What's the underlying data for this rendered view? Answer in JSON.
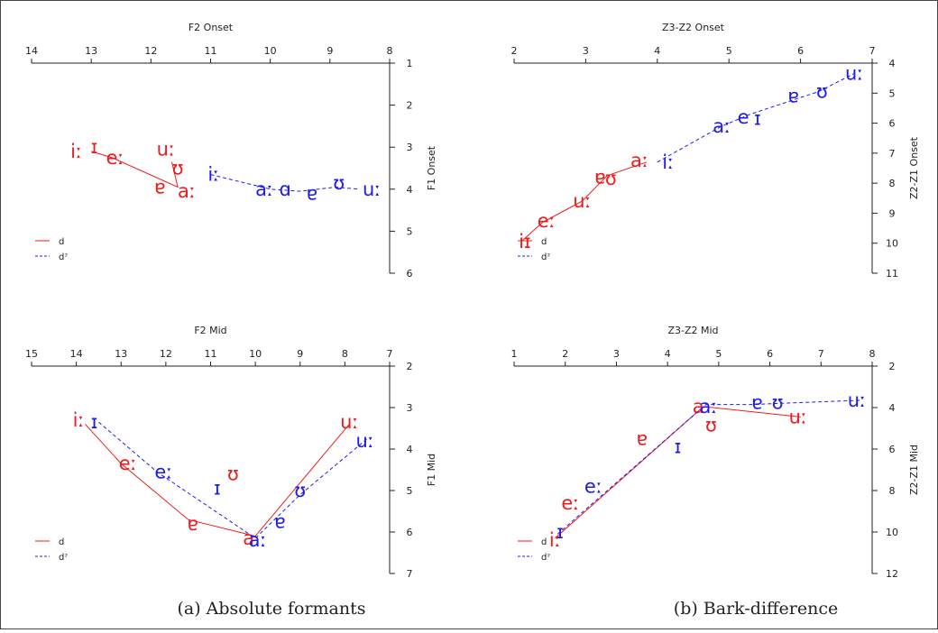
{
  "captions": [
    "(a) Absolute formants",
    "(b) Bark-difference"
  ],
  "colors": {
    "d": "#ee1c1c",
    "dq": "#1c1cee"
  },
  "legend": [
    {
      "name": "d",
      "dashed": false,
      "color": "#ee1c1c"
    },
    {
      "name": "dˀ",
      "dashed": true,
      "color": "#1c1cee"
    }
  ],
  "chart_data": [
    {
      "type": "line",
      "xlabel": "F2 Onset",
      "ylabel": "F1 Onset",
      "xlim": [
        14,
        8
      ],
      "ylim": [
        1,
        6
      ],
      "xticks": [
        14,
        13,
        12,
        11,
        10,
        9,
        8
      ],
      "yticks": [
        1,
        2,
        3,
        4,
        5,
        6
      ],
      "legend_position": "lower-left",
      "series": [
        {
          "name": "d",
          "color": "#ee1c1c",
          "dashed": false,
          "path": [
            [
              13.0,
              3.1
            ],
            [
              12.65,
              3.25
            ],
            [
              11.55,
              3.95
            ],
            [
              11.65,
              3.35
            ],
            [
              11.55,
              3.95
            ]
          ],
          "points": [
            {
              "label": "iː",
              "x": 13.25,
              "y": 3.1
            },
            {
              "label": "ɪ",
              "x": 12.95,
              "y": 3.0
            },
            {
              "label": "eː",
              "x": 12.6,
              "y": 3.25
            },
            {
              "label": "uː",
              "x": 11.75,
              "y": 3.05
            },
            {
              "label": "ʊ",
              "x": 11.55,
              "y": 3.5
            },
            {
              "label": "ɐ",
              "x": 11.85,
              "y": 3.95
            },
            {
              "label": "aː",
              "x": 11.4,
              "y": 4.05
            }
          ]
        },
        {
          "name": "dˀ",
          "color": "#1c1cee",
          "dashed": true,
          "path": [
            [
              11.0,
              3.65
            ],
            [
              10.0,
              4.0
            ],
            [
              9.5,
              4.05
            ],
            [
              8.9,
              3.95
            ],
            [
              8.5,
              4.0
            ]
          ],
          "points": [
            {
              "label": "iː",
              "x": 10.95,
              "y": 3.65
            },
            {
              "label": "aː",
              "x": 10.1,
              "y": 4.0
            },
            {
              "label": "ɑ",
              "x": 9.75,
              "y": 4.0
            },
            {
              "label": "ɐ",
              "x": 9.3,
              "y": 4.1
            },
            {
              "label": "ʊ",
              "x": 8.85,
              "y": 3.85
            },
            {
              "label": "uː",
              "x": 8.3,
              "y": 4.0
            }
          ]
        }
      ]
    },
    {
      "type": "line",
      "xlabel": "Z3-Z2 Onset",
      "ylabel": "Z2-Z1 Onset",
      "xlim": [
        2,
        7
      ],
      "ylim": [
        4,
        11
      ],
      "xticks": [
        2,
        3,
        4,
        5,
        6,
        7
      ],
      "yticks": [
        4,
        5,
        6,
        7,
        8,
        9,
        10,
        11
      ],
      "legend_position": "lower-left",
      "series": [
        {
          "name": "d",
          "color": "#ee1c1c",
          "dashed": false,
          "path": [
            [
              2.1,
              9.95
            ],
            [
              2.4,
              9.3
            ],
            [
              2.95,
              8.6
            ],
            [
              3.3,
              7.75
            ],
            [
              3.85,
              7.3
            ]
          ],
          "points": [
            {
              "label": "iɪ",
              "x": 2.15,
              "y": 9.95
            },
            {
              "label": "eː",
              "x": 2.45,
              "y": 9.25
            },
            {
              "label": "uː",
              "x": 2.95,
              "y": 8.6
            },
            {
              "label": "ɐ",
              "x": 3.2,
              "y": 7.8
            },
            {
              "label": "ʊ",
              "x": 3.35,
              "y": 7.85
            },
            {
              "label": "aː",
              "x": 3.75,
              "y": 7.25
            }
          ]
        },
        {
          "name": "dˀ",
          "color": "#1c1cee",
          "dashed": true,
          "path": [
            [
              4.0,
              7.3
            ],
            [
              4.9,
              6.1
            ],
            [
              5.3,
              5.7
            ],
            [
              6.25,
              4.95
            ],
            [
              6.75,
              4.35
            ]
          ],
          "points": [
            {
              "label": "iː",
              "x": 4.15,
              "y": 7.3
            },
            {
              "label": "aː",
              "x": 4.9,
              "y": 6.1
            },
            {
              "label": "e",
              "x": 5.2,
              "y": 5.8
            },
            {
              "label": "ɪ",
              "x": 5.4,
              "y": 5.85
            },
            {
              "label": "ɐ",
              "x": 5.9,
              "y": 5.1
            },
            {
              "label": "ʊ",
              "x": 6.3,
              "y": 4.95
            },
            {
              "label": "uː",
              "x": 6.75,
              "y": 4.35
            }
          ]
        }
      ]
    },
    {
      "type": "line",
      "xlabel": "F2 Mid",
      "ylabel": "F1 Mid",
      "xlim": [
        15,
        7
      ],
      "ylim": [
        2,
        7
      ],
      "xticks": [
        15,
        14,
        13,
        12,
        11,
        10,
        9,
        8,
        7
      ],
      "yticks": [
        2,
        3,
        4,
        5,
        6,
        7
      ],
      "legend_position": "lower-left",
      "series": [
        {
          "name": "d",
          "color": "#ee1c1c",
          "dashed": false,
          "path": [
            [
              13.8,
              3.4
            ],
            [
              13.0,
              4.35
            ],
            [
              11.5,
              5.7
            ],
            [
              10.0,
              6.1
            ],
            [
              7.9,
              3.4
            ]
          ],
          "points": [
            {
              "label": "iː",
              "x": 13.95,
              "y": 3.3
            },
            {
              "label": "eː",
              "x": 12.85,
              "y": 4.35
            },
            {
              "label": "ʊ",
              "x": 10.5,
              "y": 4.6
            },
            {
              "label": "ɐ",
              "x": 11.4,
              "y": 5.8
            },
            {
              "label": "a",
              "x": 10.15,
              "y": 6.15
            },
            {
              "label": "uː",
              "x": 7.9,
              "y": 3.35
            }
          ]
        },
        {
          "name": "dˀ",
          "color": "#1c1cee",
          "dashed": true,
          "path": [
            [
              13.5,
              3.35
            ],
            [
              12.2,
              4.55
            ],
            [
              10.0,
              6.15
            ],
            [
              9.0,
              5.1
            ],
            [
              7.5,
              3.75
            ]
          ],
          "points": [
            {
              "label": "ɪ",
              "x": 13.6,
              "y": 3.35
            },
            {
              "label": "eː",
              "x": 12.05,
              "y": 4.55
            },
            {
              "label": "ɪ",
              "x": 10.85,
              "y": 4.95
            },
            {
              "label": "ʊ",
              "x": 9.0,
              "y": 5.0
            },
            {
              "label": "ɐ",
              "x": 9.45,
              "y": 5.75
            },
            {
              "label": "aː",
              "x": 9.95,
              "y": 6.2
            },
            {
              "label": "uː",
              "x": 7.55,
              "y": 3.8
            }
          ]
        }
      ]
    },
    {
      "type": "line",
      "xlabel": "Z3-Z2 Mid",
      "ylabel": "Z2-Z1 Mid",
      "xlim": [
        1,
        8
      ],
      "ylim": [
        2,
        12
      ],
      "xticks": [
        1,
        2,
        3,
        4,
        5,
        6,
        7,
        8
      ],
      "yticks": [
        2,
        4,
        6,
        8,
        10,
        12
      ],
      "legend_position": "lower-left",
      "series": [
        {
          "name": "d",
          "color": "#ee1c1c",
          "dashed": false,
          "path": [
            [
              1.8,
              10.3
            ],
            [
              4.7,
              3.95
            ],
            [
              6.6,
              4.45
            ]
          ],
          "points": [
            {
              "label": "iː",
              "x": 1.8,
              "y": 10.4
            },
            {
              "label": "eː",
              "x": 2.1,
              "y": 8.6
            },
            {
              "label": "ɐ",
              "x": 3.5,
              "y": 5.5
            },
            {
              "label": "ʊ",
              "x": 4.85,
              "y": 4.85
            },
            {
              "label": "a",
              "x": 4.6,
              "y": 3.95
            },
            {
              "label": "uː",
              "x": 6.55,
              "y": 4.45
            }
          ]
        },
        {
          "name": "dˀ",
          "color": "#1c1cee",
          "dashed": true,
          "path": [
            [
              1.85,
              10.1
            ],
            [
              4.75,
              3.85
            ],
            [
              5.7,
              3.85
            ],
            [
              6.15,
              3.8
            ],
            [
              7.8,
              3.65
            ]
          ],
          "points": [
            {
              "label": "ɪ",
              "x": 1.9,
              "y": 10.0
            },
            {
              "label": "eː",
              "x": 2.55,
              "y": 7.8
            },
            {
              "label": "ɪ",
              "x": 4.2,
              "y": 5.9
            },
            {
              "label": "aː",
              "x": 4.8,
              "y": 3.95
            },
            {
              "label": "ɐ",
              "x": 5.75,
              "y": 3.75
            },
            {
              "label": "ʊ",
              "x": 6.15,
              "y": 3.75
            },
            {
              "label": "uː",
              "x": 7.7,
              "y": 3.65
            }
          ]
        }
      ]
    }
  ]
}
